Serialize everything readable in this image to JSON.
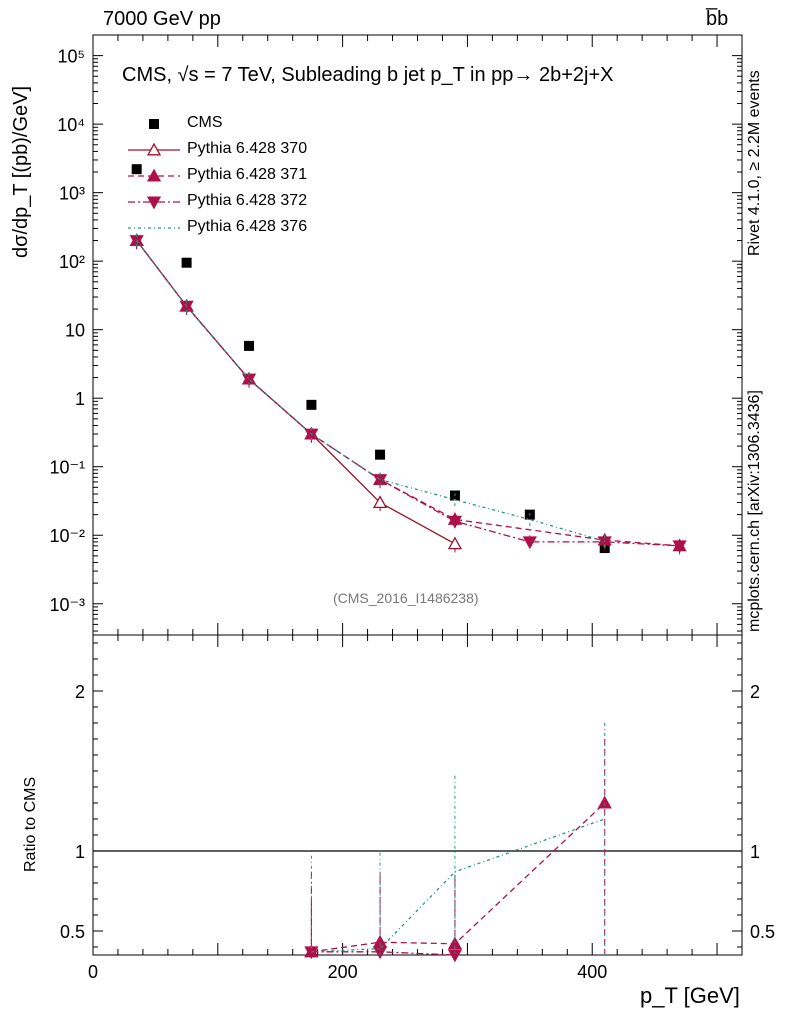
{
  "header": {
    "left": "7000 GeV pp",
    "right": "b̅b"
  },
  "side_labels": {
    "right_top": "Rivet 4.1.0, ≥ 2.2M events",
    "right_bottom": "mcplots.cern.ch [arXiv:1306.3436]"
  },
  "chart_data": [
    {
      "type": "scatter",
      "panel": "main",
      "title": "CMS, √s = 7 TeV, Subleading b jet p_T in pp→ 2b+2j+X",
      "xlabel": "p_T [GeV]",
      "ylabel": "dσ/dp_T [(pb)/GeV]",
      "yscale": "log",
      "xlim": [
        0,
        520
      ],
      "ylim": [
        0.00035,
        200000
      ],
      "tick_labels_y": [
        "10⁻³",
        "10⁻²",
        "10⁻¹",
        "1",
        "10",
        "10²",
        "10³",
        "10⁴",
        "10⁵"
      ],
      "tick_values_y": [
        0.001,
        0.01,
        0.1,
        1,
        10,
        100,
        1000,
        10000,
        100000
      ],
      "watermark": "(CMS_2016_I1486238)",
      "legend_position": "top-left",
      "series": [
        {
          "name": "CMS",
          "color": "#000000",
          "marker": "square-filled",
          "x": [
            35,
            75,
            125,
            175,
            230,
            290,
            350,
            410
          ],
          "y": [
            2200,
            95,
            5.8,
            0.8,
            0.15,
            0.038,
            0.02,
            0.0065
          ]
        },
        {
          "name": "Pythia 6.428 370",
          "color": "#a0102a",
          "marker": "triangle-up-open",
          "line": "solid",
          "x": [
            35,
            75,
            125,
            175,
            230,
            290
          ],
          "y": [
            200,
            22,
            1.9,
            0.3,
            0.03,
            0.0075
          ]
        },
        {
          "name": "Pythia 6.428 371",
          "color": "#b0104a",
          "marker": "triangle-up-filled",
          "line": "dashed",
          "x": [
            35,
            75,
            125,
            175,
            230,
            290,
            410,
            470
          ],
          "y": [
            200,
            22,
            1.9,
            0.3,
            0.065,
            0.017,
            0.0085,
            0.007
          ]
        },
        {
          "name": "Pythia 6.428 372",
          "color": "#b0104a",
          "marker": "triangle-down-filled",
          "line": "dashdot",
          "x": [
            35,
            75,
            125,
            175,
            230,
            290,
            350,
            410,
            470
          ],
          "y": [
            200,
            22,
            1.9,
            0.3,
            0.065,
            0.016,
            0.008,
            0.008,
            0.007
          ]
        },
        {
          "name": "Pythia 6.428 376",
          "color": "#1a9a7a",
          "marker": "none",
          "line": "dotdash",
          "x": [
            35,
            75,
            125,
            175,
            230,
            290,
            350,
            410
          ],
          "y": [
            200,
            22,
            1.9,
            0.3,
            0.065,
            0.033,
            0.017,
            0.0082
          ]
        }
      ]
    },
    {
      "type": "line",
      "panel": "ratio",
      "xlabel": "p_T [GeV]",
      "ylabel": "Ratio to CMS",
      "xlim": [
        0,
        520
      ],
      "ylim": [
        0.35,
        2.35
      ],
      "tick_labels_x": [
        "0",
        "200",
        "400"
      ],
      "tick_values_x": [
        0,
        200,
        400
      ],
      "tick_labels_y": [
        "0.5",
        "1",
        "2"
      ],
      "tick_values_y": [
        0.5,
        1,
        2
      ],
      "reference_line": 1,
      "series": [
        {
          "name": "Pythia 6.428 370",
          "color": "#a0102a",
          "x": [
            175
          ],
          "y": [
            0.37
          ]
        },
        {
          "name": "Pythia 6.428 371",
          "color": "#b0104a",
          "x": [
            175,
            230,
            290,
            410
          ],
          "y": [
            0.37,
            0.43,
            0.42,
            1.3
          ]
        },
        {
          "name": "Pythia 6.428 372",
          "color": "#b0104a",
          "x": [
            175,
            230,
            290
          ],
          "y": [
            0.37,
            0.37,
            0.35
          ]
        },
        {
          "name": "Pythia 6.428 376",
          "color": "#1a9a7a",
          "x": [
            175,
            230,
            290,
            410
          ],
          "y": [
            0.37,
            0.39,
            0.87,
            1.2
          ]
        }
      ]
    }
  ]
}
